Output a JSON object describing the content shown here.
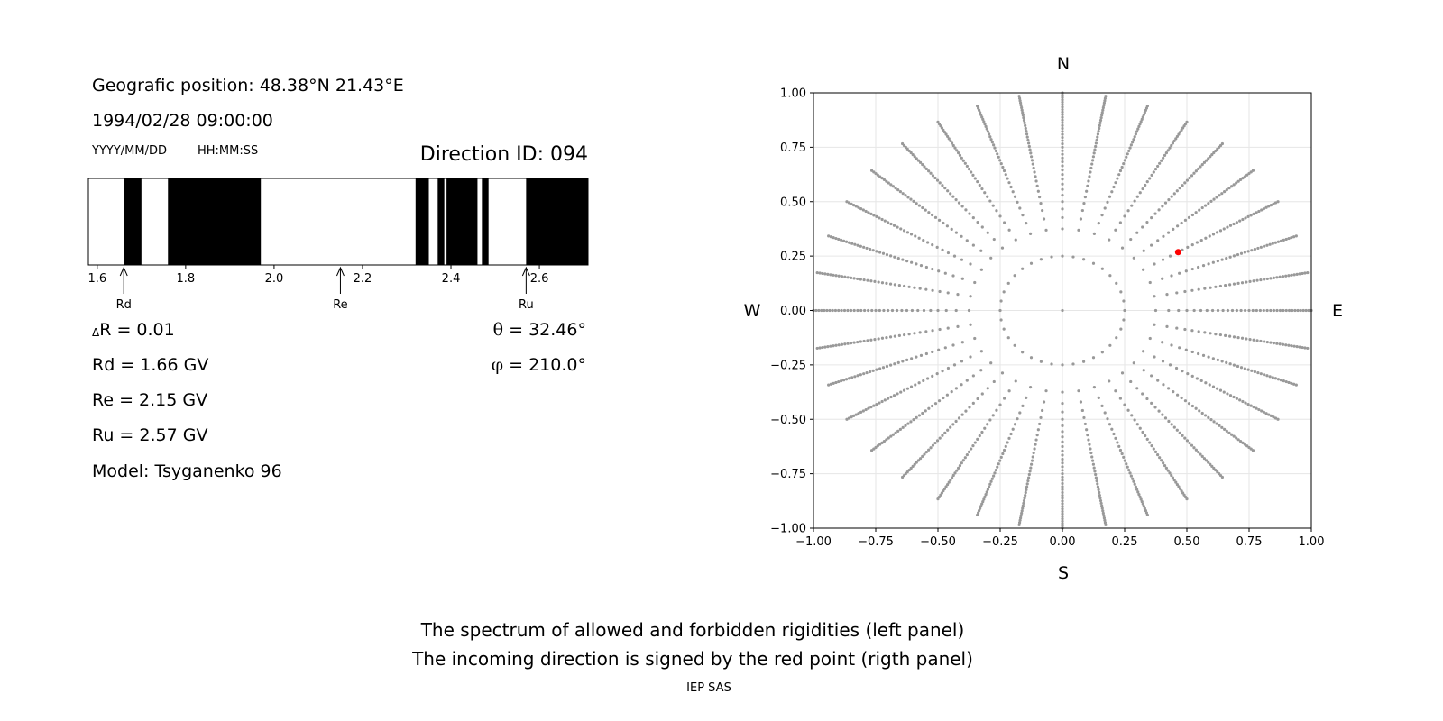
{
  "left_panel": {
    "geo_position": "Geografic position: 48.38°N 21.43°E",
    "datetime": "1994/02/28 09:00:00",
    "date_format": "YYYY/MM/DD",
    "time_format": "HH:MM:SS",
    "direction_id": "Direction ID: 094",
    "delta_r_sym": "Δ",
    "delta_r_text": "R = 0.01",
    "rd": "Rd = 1.66 GV",
    "re": "Re = 2.15 GV",
    "ru": "Ru = 2.57 GV",
    "model": "Model: Tsyganenko 96",
    "theta_sym": "θ",
    "theta_text": " = 32.46°",
    "phi_sym": "φ",
    "phi_text": " = 210.0°"
  },
  "right_panel": {
    "north": "N",
    "south": "S",
    "west": "W",
    "east": "E"
  },
  "footer": {
    "line1": "The spectrum of allowed and forbidden rigidities (left panel)",
    "line2": "The incoming direction is signed by the red point (rigth panel)",
    "credit": "IEP SAS"
  },
  "colors": {
    "forbidden": "#000000",
    "allowed": "#ffffff",
    "grid_point": "#999999",
    "direction_point": "#ff0000",
    "grid_line": "#e6e6e6"
  },
  "chart_data": [
    {
      "type": "bar",
      "xlim": [
        1.58,
        2.71
      ],
      "ticks": [
        1.6,
        1.8,
        2.0,
        2.2,
        2.4,
        2.6
      ],
      "tick_labels": [
        "1.6",
        "1.8",
        "2.0",
        "2.2",
        "2.4",
        "2.6"
      ],
      "forbidden_intervals": [
        [
          1.66,
          1.7
        ],
        [
          1.76,
          1.97
        ],
        [
          2.32,
          2.35
        ],
        [
          2.37,
          2.385
        ],
        [
          2.39,
          2.46
        ],
        [
          2.47,
          2.485
        ],
        [
          2.57,
          2.71
        ]
      ],
      "markers": [
        {
          "label": "Rd",
          "x": 1.66
        },
        {
          "label": "Re",
          "x": 2.15
        },
        {
          "label": "Ru",
          "x": 2.57
        }
      ]
    },
    {
      "type": "scatter",
      "xlim": [
        -1.0,
        1.0
      ],
      "ylim": [
        -1.0,
        1.0
      ],
      "ticks": [
        -1.0,
        -0.75,
        -0.5,
        -0.25,
        0.0,
        0.25,
        0.5,
        0.75,
        1.0
      ],
      "tick_labels": [
        "−1.00",
        "−0.75",
        "−0.50",
        "−0.25",
        "0.00",
        "0.25",
        "0.50",
        "0.75",
        "1.00"
      ],
      "grid": true,
      "direction_grid": {
        "inner_radius": 0.25,
        "inner_ring_points": 36,
        "outer_radius": 1.0,
        "spoke_count": 36,
        "points_per_spoke": 36,
        "center_point": [
          0.0,
          0.0
        ]
      },
      "selected_point": {
        "x": 0.465,
        "y": 0.268
      }
    }
  ]
}
